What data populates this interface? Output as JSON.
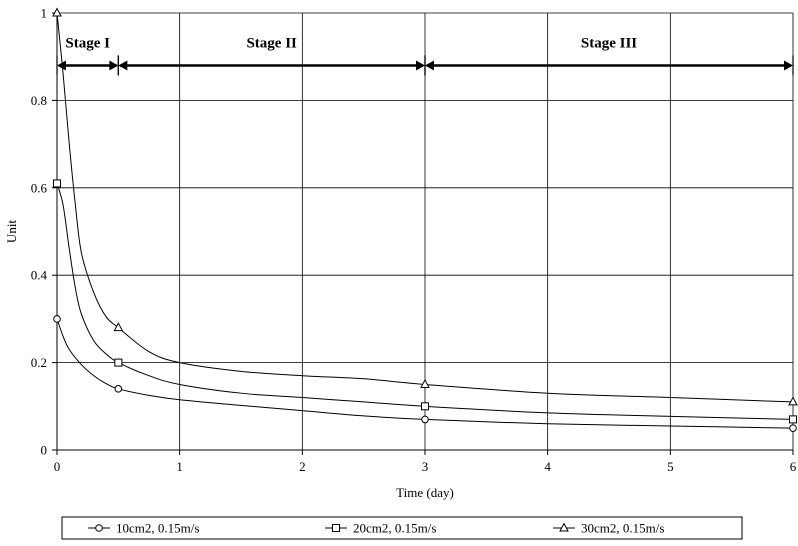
{
  "chart_data": {
    "type": "line",
    "title": "",
    "xlabel": "Time (day)",
    "ylabel": "Unit",
    "xlim": [
      0,
      6
    ],
    "ylim": [
      0,
      1
    ],
    "grid": true,
    "legend_placement": "bottom",
    "x_ticks": [
      "0",
      "1",
      "2",
      "3",
      "4",
      "5",
      "6"
    ],
    "y_ticks": [
      "0",
      "0.2",
      "0.4",
      "0.6",
      "0.8",
      "1"
    ],
    "series": [
      {
        "name": "10cm2, 0.15m/s",
        "marker": "circle",
        "points": [
          [
            0,
            0.3
          ],
          [
            0.5,
            0.14
          ],
          [
            3,
            0.07
          ],
          [
            6,
            0.05
          ]
        ],
        "curve": [
          [
            0,
            0.3
          ],
          [
            0.05,
            0.26
          ],
          [
            0.1,
            0.23
          ],
          [
            0.2,
            0.195
          ],
          [
            0.3,
            0.17
          ],
          [
            0.4,
            0.152
          ],
          [
            0.5,
            0.14
          ],
          [
            0.75,
            0.125
          ],
          [
            1,
            0.115
          ],
          [
            1.5,
            0.102
          ],
          [
            2,
            0.09
          ],
          [
            2.5,
            0.078
          ],
          [
            3,
            0.07
          ],
          [
            4,
            0.06
          ],
          [
            5,
            0.055
          ],
          [
            6,
            0.05
          ]
        ]
      },
      {
        "name": "20cm2, 0.15m/s",
        "marker": "square",
        "points": [
          [
            0,
            0.61
          ],
          [
            0.5,
            0.2
          ],
          [
            3,
            0.1
          ],
          [
            6,
            0.07
          ]
        ],
        "curve": [
          [
            0,
            0.61
          ],
          [
            0.05,
            0.56
          ],
          [
            0.1,
            0.46
          ],
          [
            0.15,
            0.37
          ],
          [
            0.2,
            0.31
          ],
          [
            0.3,
            0.25
          ],
          [
            0.4,
            0.22
          ],
          [
            0.5,
            0.2
          ],
          [
            0.75,
            0.17
          ],
          [
            1,
            0.15
          ],
          [
            1.5,
            0.13
          ],
          [
            2,
            0.12
          ],
          [
            2.5,
            0.11
          ],
          [
            3,
            0.1
          ],
          [
            4,
            0.085
          ],
          [
            5,
            0.077
          ],
          [
            6,
            0.07
          ]
        ]
      },
      {
        "name": "30cm2, 0.15m/s",
        "marker": "triangle",
        "points": [
          [
            0,
            1.0
          ],
          [
            0.5,
            0.28
          ],
          [
            3,
            0.15
          ],
          [
            6,
            0.11
          ]
        ],
        "curve": [
          [
            0,
            1.0
          ],
          [
            0.05,
            0.86
          ],
          [
            0.1,
            0.7
          ],
          [
            0.15,
            0.56
          ],
          [
            0.2,
            0.45
          ],
          [
            0.3,
            0.36
          ],
          [
            0.4,
            0.305
          ],
          [
            0.5,
            0.28
          ],
          [
            0.75,
            0.225
          ],
          [
            1,
            0.2
          ],
          [
            1.5,
            0.18
          ],
          [
            2,
            0.17
          ],
          [
            2.5,
            0.163
          ],
          [
            3,
            0.15
          ],
          [
            4,
            0.13
          ],
          [
            5,
            0.12
          ],
          [
            6,
            0.11
          ]
        ]
      }
    ],
    "annotations": [
      {
        "label": "Stage I",
        "x_from": 0,
        "x_to": 0.5,
        "y": 0.88
      },
      {
        "label": "Stage II",
        "x_from": 0.5,
        "x_to": 3,
        "y": 0.88
      },
      {
        "label": "Stage III",
        "x_from": 3,
        "x_to": 6,
        "y": 0.88
      }
    ]
  }
}
